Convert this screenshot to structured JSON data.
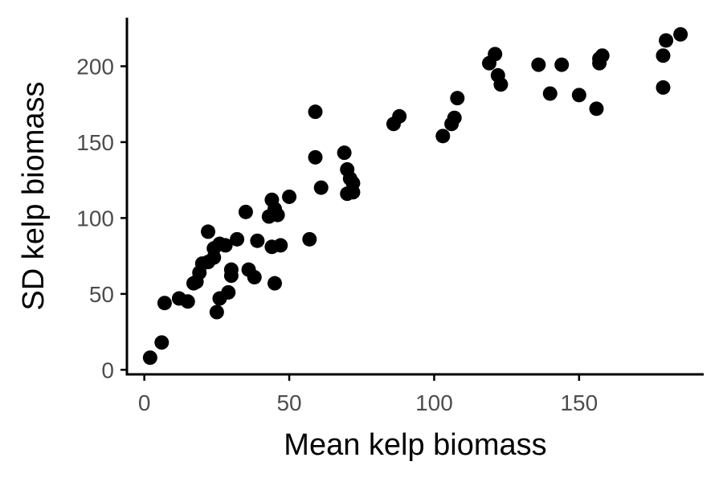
{
  "chart_data": {
    "type": "scatter",
    "title": "",
    "xlabel": "Mean kelp biomass",
    "ylabel": "SD kelp biomass",
    "xlim": [
      -6,
      193
    ],
    "ylim": [
      -3,
      232
    ],
    "xticks": [
      0,
      50,
      100,
      150
    ],
    "yticks": [
      0,
      50,
      100,
      150,
      200
    ],
    "grid": false,
    "legend": "none",
    "point_color": "#000000",
    "points": [
      [
        2,
        8
      ],
      [
        6,
        18
      ],
      [
        7,
        44
      ],
      [
        12,
        47
      ],
      [
        15,
        45
      ],
      [
        17,
        57
      ],
      [
        18,
        58
      ],
      [
        19,
        64
      ],
      [
        20,
        70
      ],
      [
        22,
        71
      ],
      [
        22,
        91
      ],
      [
        24,
        80
      ],
      [
        24,
        74
      ],
      [
        26,
        83
      ],
      [
        25,
        38
      ],
      [
        26,
        47
      ],
      [
        28,
        82
      ],
      [
        29,
        51
      ],
      [
        30,
        62
      ],
      [
        30,
        66
      ],
      [
        32,
        86
      ],
      [
        35,
        104
      ],
      [
        36,
        66
      ],
      [
        38,
        61
      ],
      [
        39,
        85
      ],
      [
        43,
        101
      ],
      [
        44,
        81
      ],
      [
        44,
        112
      ],
      [
        45,
        106
      ],
      [
        45,
        57
      ],
      [
        46,
        102
      ],
      [
        47,
        82
      ],
      [
        50,
        114
      ],
      [
        57,
        86
      ],
      [
        59,
        170
      ],
      [
        59,
        140
      ],
      [
        61,
        120
      ],
      [
        69,
        143
      ],
      [
        70,
        132
      ],
      [
        70,
        116
      ],
      [
        71,
        126
      ],
      [
        72,
        117
      ],
      [
        72,
        123
      ],
      [
        86,
        162
      ],
      [
        88,
        167
      ],
      [
        103,
        154
      ],
      [
        106,
        162
      ],
      [
        107,
        166
      ],
      [
        108,
        179
      ],
      [
        119,
        202
      ],
      [
        121,
        208
      ],
      [
        122,
        194
      ],
      [
        123,
        188
      ],
      [
        136,
        201
      ],
      [
        140,
        182
      ],
      [
        144,
        201
      ],
      [
        150,
        181
      ],
      [
        156,
        172
      ],
      [
        157,
        205
      ],
      [
        157,
        202
      ],
      [
        158,
        207
      ],
      [
        179,
        207
      ],
      [
        179,
        186
      ],
      [
        180,
        217
      ],
      [
        185,
        221
      ]
    ]
  }
}
